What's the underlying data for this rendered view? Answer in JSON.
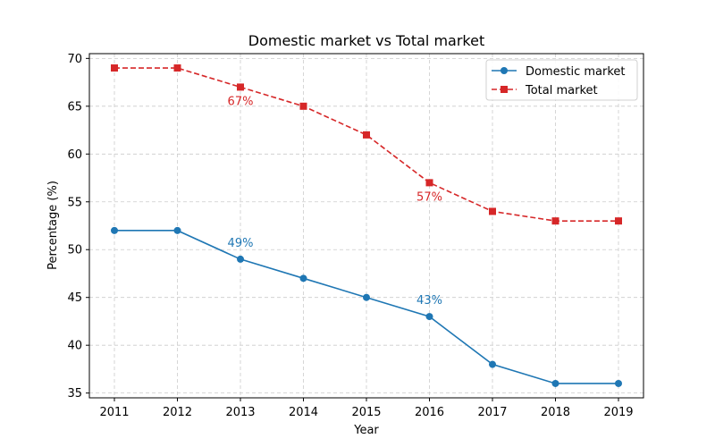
{
  "chart_data": {
    "type": "line",
    "title": "Domestic market vs Total market",
    "xlabel": "Year",
    "ylabel": "Percentage (%)",
    "x": [
      2011,
      2012,
      2013,
      2014,
      2015,
      2016,
      2017,
      2018,
      2019
    ],
    "xticks": [
      "2011",
      "2012",
      "2013",
      "2014",
      "2015",
      "2016",
      "2017",
      "2018",
      "2019"
    ],
    "yticks": [
      35,
      40,
      45,
      50,
      55,
      60,
      65,
      70
    ],
    "ylim": [
      34.5,
      70.5
    ],
    "grid": true,
    "legend_position": "top-right",
    "series": [
      {
        "name": "Domestic market",
        "values": [
          52,
          52,
          49,
          47,
          45,
          43,
          38,
          36,
          36
        ],
        "color": "#1f77b4",
        "marker": "circle",
        "linestyle": "solid"
      },
      {
        "name": "Total market",
        "values": [
          69,
          69,
          67,
          65,
          62,
          57,
          54,
          53,
          53
        ],
        "color": "#d62728",
        "marker": "square",
        "linestyle": "dashed"
      }
    ],
    "annotations": [
      {
        "text": "49%",
        "x": 2013,
        "y": 49,
        "series": 0,
        "placement": "above"
      },
      {
        "text": "43%",
        "x": 2016,
        "y": 43,
        "series": 0,
        "placement": "above"
      },
      {
        "text": "67%",
        "x": 2013,
        "y": 67,
        "series": 1,
        "placement": "below"
      },
      {
        "text": "57%",
        "x": 2016,
        "y": 57,
        "series": 1,
        "placement": "below"
      }
    ]
  }
}
